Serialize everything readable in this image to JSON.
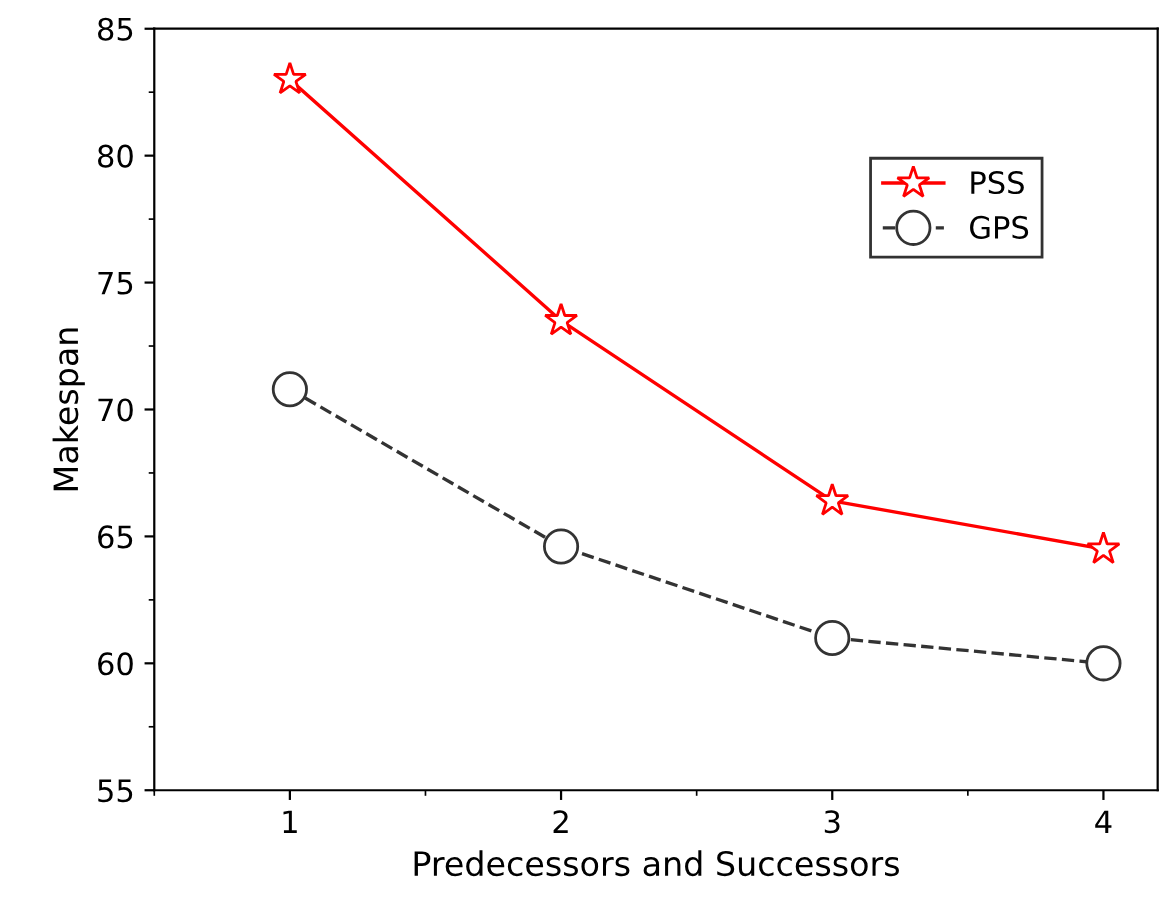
{
  "chart_data": {
    "type": "line",
    "xlabel": "Predecessors and Successors",
    "ylabel": "Makespan",
    "x": [
      1,
      2,
      3,
      4
    ],
    "series": [
      {
        "name": "PSS",
        "color": "#ff0000",
        "values": [
          83.0,
          73.5,
          66.4,
          64.5
        ],
        "marker": "star",
        "line_style": "solid"
      },
      {
        "name": "GPS",
        "color": "#333333",
        "values": [
          70.8,
          64.6,
          61.0,
          60.0
        ],
        "marker": "circle",
        "line_style": "dashed"
      }
    ],
    "xlim": [
      0.5,
      4.2
    ],
    "xticks": [
      1,
      2,
      3,
      4
    ],
    "ylim": [
      55,
      85
    ],
    "yticks": [
      55,
      60,
      65,
      70,
      75,
      80,
      85
    ],
    "grid": false,
    "legend": "top right"
  }
}
